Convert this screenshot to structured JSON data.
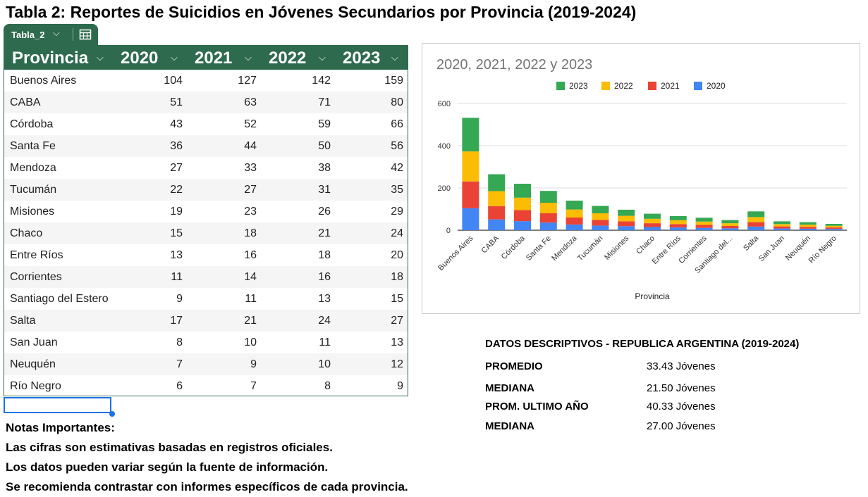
{
  "page": {
    "title": "Tabla 2: Reportes de Suicidios en Jóvenes Secundarios por Provincia (2019-2024)"
  },
  "sheet_tab": {
    "name": "Tabla_2",
    "chevron": "⌵",
    "icon": "table-grid-icon"
  },
  "table": {
    "headers": [
      "Provincia",
      "2020",
      "2021",
      "2022",
      "2023"
    ],
    "rows": [
      [
        "Buenos Aires",
        "104",
        "127",
        "142",
        "159"
      ],
      [
        "CABA",
        "51",
        "63",
        "71",
        "80"
      ],
      [
        "Córdoba",
        "43",
        "52",
        "59",
        "66"
      ],
      [
        "Santa Fe",
        "36",
        "44",
        "50",
        "56"
      ],
      [
        "Mendoza",
        "27",
        "33",
        "38",
        "42"
      ],
      [
        "Tucumán",
        "22",
        "27",
        "31",
        "35"
      ],
      [
        "Misiones",
        "19",
        "23",
        "26",
        "29"
      ],
      [
        "Chaco",
        "15",
        "18",
        "21",
        "24"
      ],
      [
        "Entre Ríos",
        "13",
        "16",
        "18",
        "20"
      ],
      [
        "Corrientes",
        "11",
        "14",
        "16",
        "18"
      ],
      [
        "Santiago del Estero",
        "9",
        "11",
        "13",
        "15"
      ],
      [
        "Salta",
        "17",
        "21",
        "24",
        "27"
      ],
      [
        "San Juan",
        "8",
        "10",
        "11",
        "13"
      ],
      [
        "Neuquén",
        "7",
        "9",
        "10",
        "12"
      ],
      [
        "Río Negro",
        "6",
        "7",
        "8",
        "9"
      ]
    ],
    "header_color": "#2e6b4e"
  },
  "chart_data": {
    "type": "bar",
    "stacked": true,
    "title": "2020, 2021, 2022 y 2023",
    "xlabel": "Provincia",
    "ylabel": "",
    "ylim": [
      0,
      600
    ],
    "yticks": [
      0,
      200,
      400,
      600
    ],
    "grid": true,
    "legend_position": "top",
    "categories": [
      "Buenos Aires",
      "CABA",
      "Córdoba",
      "Santa Fe",
      "Mendoza",
      "Tucumán",
      "Misiones",
      "Chaco",
      "Entre Ríos",
      "Corrientes",
      "Santiago del...",
      "Salta",
      "San Juan",
      "Neuquén",
      "Río Negro"
    ],
    "series": [
      {
        "name": "2020",
        "color": "#4285f4",
        "values": [
          104,
          51,
          43,
          36,
          27,
          22,
          19,
          15,
          13,
          11,
          9,
          17,
          8,
          7,
          6
        ]
      },
      {
        "name": "2021",
        "color": "#ea4335",
        "values": [
          127,
          63,
          52,
          44,
          33,
          27,
          23,
          18,
          16,
          14,
          11,
          21,
          10,
          9,
          7
        ]
      },
      {
        "name": "2022",
        "color": "#fbbc04",
        "values": [
          142,
          71,
          59,
          50,
          38,
          31,
          26,
          21,
          18,
          16,
          13,
          24,
          11,
          10,
          8
        ]
      },
      {
        "name": "2023",
        "color": "#34a853",
        "values": [
          159,
          80,
          66,
          56,
          42,
          35,
          29,
          24,
          20,
          18,
          15,
          27,
          13,
          12,
          9
        ]
      }
    ],
    "legend_order": [
      "2023",
      "2022",
      "2021",
      "2020"
    ]
  },
  "stats": {
    "heading": "DATOS DESCRIPTIVOS - REPUBLICA ARGENTINA  (2019-2024)",
    "rows": [
      {
        "label": "PROMEDIO",
        "value": "33.43 Jóvenes"
      },
      {
        "label": "MEDIANA",
        "value": "21.50 Jóvenes"
      },
      {
        "label": "PROM. ULTIMO AÑO",
        "value": "40.33 Jóvenes"
      },
      {
        "label": "MEDIANA",
        "value": "27.00 Jóvenes"
      }
    ]
  },
  "notes": {
    "heading": "Notas Importantes:",
    "lines": [
      "Las cifras son estimativas basadas en registros oficiales.",
      "Los datos pueden variar según la fuente de información.",
      "Se recomienda contrastar con informes específicos de cada provincia."
    ]
  }
}
